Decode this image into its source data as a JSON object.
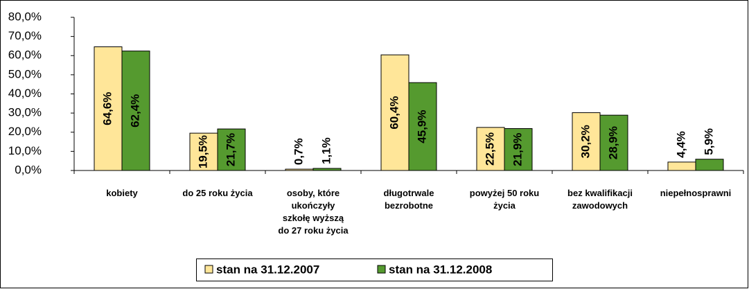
{
  "chart_data": {
    "type": "bar",
    "categories": [
      "kobiety",
      "do 25 roku życia",
      "osoby, które\nukończyły\nszkołę wyższą\ndo 27 roku życia",
      "długotrwale\nbezrobotne",
      "powyżej 50 roku\nżycia",
      "bez kwalifikacji\nzawodowych",
      "niepełnosprawni"
    ],
    "series": [
      {
        "name": "stan na 31.12.2007",
        "color": "#ffe699",
        "values": [
          64.6,
          19.5,
          0.7,
          60.4,
          22.5,
          30.2,
          4.4
        ],
        "value_labels": [
          "64,6%",
          "19,5%",
          "0,7%",
          "60,4%",
          "22,5%",
          "30,2%",
          "4,4%"
        ]
      },
      {
        "name": "stan na 31.12.2008",
        "color": "#559a2f",
        "values": [
          62.4,
          21.7,
          1.1,
          45.9,
          21.9,
          28.9,
          5.9
        ],
        "value_labels": [
          "62,4%",
          "21,7%",
          "1,1%",
          "45,9%",
          "21,9%",
          "28,9%",
          "5,9%"
        ]
      }
    ],
    "ylim": [
      0,
      80
    ],
    "yticks": [
      {
        "value": 0,
        "label": "0,0%"
      },
      {
        "value": 10,
        "label": "10,0%"
      },
      {
        "value": 20,
        "label": "20,0%"
      },
      {
        "value": 30,
        "label": "30,0%"
      },
      {
        "value": 40,
        "label": "40,0%"
      },
      {
        "value": 50,
        "label": "50,0%"
      },
      {
        "value": 60,
        "label": "60,0%"
      },
      {
        "value": 70,
        "label": "70,0%"
      },
      {
        "value": 80,
        "label": "80,0%"
      }
    ],
    "grid": false,
    "legend": "bottom"
  }
}
